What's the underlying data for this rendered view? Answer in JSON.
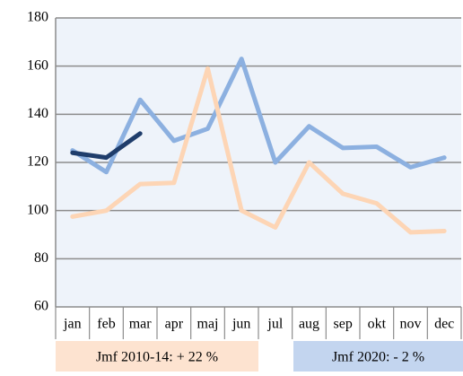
{
  "chart_data": {
    "type": "line",
    "categories": [
      "jan",
      "feb",
      "mar",
      "apr",
      "maj",
      "jun",
      "jul",
      "aug",
      "sep",
      "okt",
      "nov",
      "dec"
    ],
    "series": [
      {
        "color": "#8cb0e0",
        "values": [
          125,
          116,
          146,
          129,
          134,
          163,
          120,
          135,
          126,
          126.5,
          118,
          122
        ]
      },
      {
        "color": "#fdd5b5",
        "values": [
          97.5,
          100,
          111,
          111.5,
          159,
          100,
          93,
          120,
          107,
          103,
          91,
          91.5
        ]
      },
      {
        "color": "#1f3d6b",
        "values": [
          124,
          122,
          132,
          null,
          null,
          null,
          null,
          null,
          null,
          null,
          null,
          null
        ]
      }
    ],
    "ylim": [
      60,
      180
    ],
    "yticks": [
      60,
      80,
      100,
      120,
      140,
      160,
      180
    ],
    "grid": true,
    "annotations": [
      {
        "text": "Jmf 2010-14: + 22 %",
        "color": "#fde3d0"
      },
      {
        "text": "Jmf 2020: - 2 %",
        "color": "#c3d5ef"
      }
    ]
  }
}
